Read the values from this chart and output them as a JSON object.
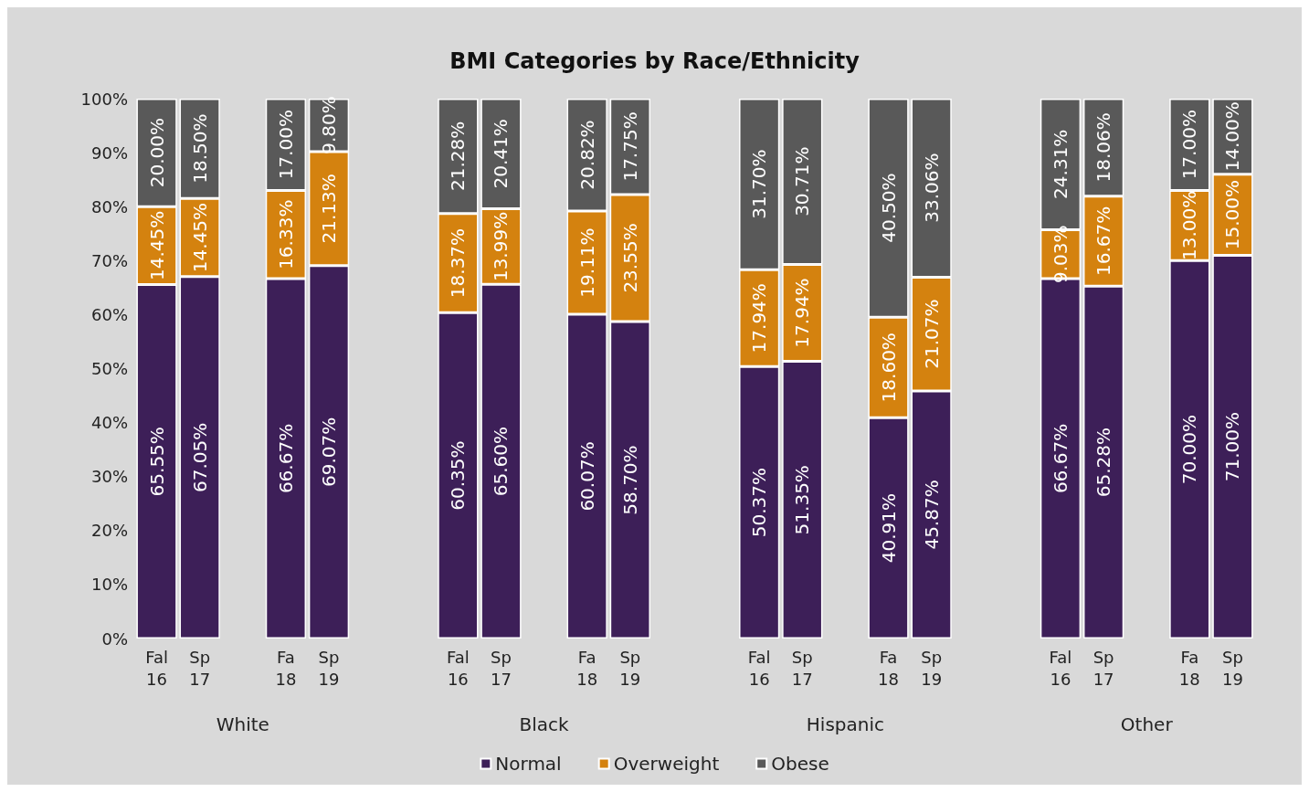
{
  "chart_data": {
    "type": "bar",
    "stacked": true,
    "title": "BMI Categories by Race/Ethnicity",
    "categories": [
      "Fal 16",
      "Sp 17",
      null,
      "Fa 18",
      "Sp 19",
      null,
      null,
      "Fal 16",
      "Sp 17",
      null,
      "Fa 18",
      "Sp 19",
      null,
      null,
      "Fal 16",
      "Sp 17",
      null,
      "Fa 18",
      "Sp 19",
      null,
      null,
      "Fal 16",
      "Sp 17",
      null,
      "Fa 18",
      "Sp 19"
    ],
    "annotations": [
      "White",
      "Black",
      "Hispanic",
      "Other"
    ],
    "series": [
      {
        "name": "Normal",
        "color": "#3d1f58",
        "values": [
          65.55,
          67.05,
          null,
          66.67,
          69.07,
          null,
          null,
          60.35,
          65.6,
          null,
          60.07,
          58.7,
          null,
          null,
          50.37,
          51.35,
          null,
          40.91,
          45.87,
          null,
          null,
          66.67,
          65.28,
          null,
          70.0,
          71.0
        ],
        "value_labels": [
          "65.55%",
          "67.05%",
          null,
          "66.67%",
          "69.07%",
          null,
          null,
          "60.35%",
          "65.60%",
          null,
          "60.07%",
          "58.70%",
          null,
          null,
          "50.37%",
          "51.35%",
          null,
          "40.91%",
          "45.87%",
          null,
          null,
          "66.67%",
          "65.28%",
          null,
          "70.00%",
          "71.00%"
        ]
      },
      {
        "name": "Overweight",
        "color": "#d4820f",
        "values": [
          14.45,
          14.45,
          null,
          16.33,
          21.13,
          null,
          null,
          18.37,
          13.99,
          null,
          19.11,
          23.55,
          null,
          null,
          17.94,
          17.94,
          null,
          18.6,
          21.07,
          null,
          null,
          9.03,
          16.67,
          null,
          13.0,
          15.0
        ],
        "value_labels": [
          "14.45%",
          "14.45%",
          null,
          "16.33%",
          "21.13%",
          null,
          null,
          "18.37%",
          "13.99%",
          null,
          "19.11%",
          "23.55%",
          null,
          null,
          "17.94%",
          "17.94%",
          null,
          "18.60%",
          "21.07%",
          null,
          null,
          "9.03%",
          "16.67%",
          null,
          "13.00%",
          "15.00%"
        ]
      },
      {
        "name": "Obese",
        "color": "#595959",
        "values": [
          20.0,
          18.5,
          null,
          17.0,
          9.8,
          null,
          null,
          21.28,
          20.41,
          null,
          20.82,
          17.75,
          null,
          null,
          31.7,
          30.71,
          null,
          40.5,
          33.06,
          null,
          null,
          24.31,
          18.06,
          null,
          17.0,
          14.0
        ],
        "value_labels": [
          "20.00%",
          "18.50%",
          null,
          "17.00%",
          "9.80%",
          null,
          null,
          "21.28%",
          "20.41%",
          null,
          "20.82%",
          "17.75%",
          null,
          null,
          "31.70%",
          "30.71%",
          null,
          "40.50%",
          "33.06%",
          null,
          null,
          "24.31%",
          "18.06%",
          null,
          "17.00%",
          "14.00%"
        ]
      }
    ],
    "ylim": [
      0,
      100
    ],
    "yticks": [
      {
        "value": 0,
        "label": "0%"
      },
      {
        "value": 10,
        "label": "10%"
      },
      {
        "value": 20,
        "label": "20%"
      },
      {
        "value": 30,
        "label": "30%"
      },
      {
        "value": 40,
        "label": "40%"
      },
      {
        "value": 50,
        "label": "50%"
      },
      {
        "value": 60,
        "label": "60%"
      },
      {
        "value": 70,
        "label": "70%"
      },
      {
        "value": 80,
        "label": "80%"
      },
      {
        "value": 90,
        "label": "90%"
      },
      {
        "value": 100,
        "label": "100%"
      }
    ],
    "grid": false,
    "legend": "bottom"
  }
}
